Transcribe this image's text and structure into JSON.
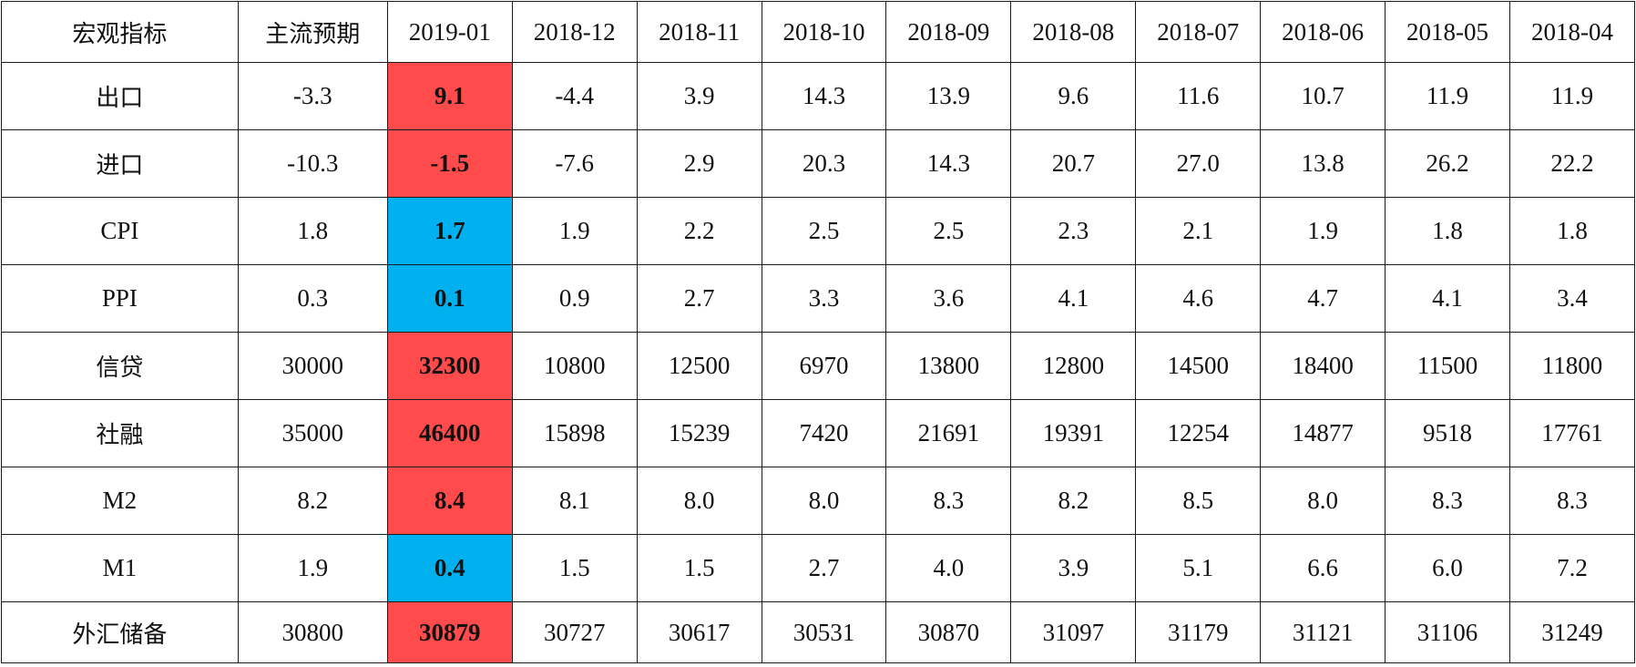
{
  "table": {
    "header": {
      "indicator": "宏观指标",
      "expectation": "主流预期",
      "current": "2019-01",
      "history": [
        "2018-12",
        "2018-11",
        "2018-10",
        "2018-09",
        "2018-08",
        "2018-07",
        "2018-06",
        "2018-05",
        "2018-04"
      ]
    },
    "rows": [
      {
        "name": "出口",
        "expectation": "-3.3",
        "current": "9.1",
        "current_flag": "up",
        "history": [
          "-4.4",
          "3.9",
          "14.3",
          "13.9",
          "9.6",
          "11.6",
          "10.7",
          "11.9",
          "11.9"
        ]
      },
      {
        "name": "进口",
        "expectation": "-10.3",
        "current": "-1.5",
        "current_flag": "up",
        "history": [
          "-7.6",
          "2.9",
          "20.3",
          "14.3",
          "20.7",
          "27.0",
          "13.8",
          "26.2",
          "22.2"
        ]
      },
      {
        "name": "CPI",
        "expectation": "1.8",
        "current": "1.7",
        "current_flag": "down",
        "history": [
          "1.9",
          "2.2",
          "2.5",
          "2.5",
          "2.3",
          "2.1",
          "1.9",
          "1.8",
          "1.8"
        ]
      },
      {
        "name": "PPI",
        "expectation": "0.3",
        "current": "0.1",
        "current_flag": "down",
        "history": [
          "0.9",
          "2.7",
          "3.3",
          "3.6",
          "4.1",
          "4.6",
          "4.7",
          "4.1",
          "3.4"
        ]
      },
      {
        "name": "信贷",
        "expectation": "30000",
        "current": "32300",
        "current_flag": "up",
        "history": [
          "10800",
          "12500",
          "6970",
          "13800",
          "12800",
          "14500",
          "18400",
          "11500",
          "11800"
        ]
      },
      {
        "name": "社融",
        "expectation": "35000",
        "current": "46400",
        "current_flag": "up",
        "history": [
          "15898",
          "15239",
          "7420",
          "21691",
          "19391",
          "12254",
          "14877",
          "9518",
          "17761"
        ]
      },
      {
        "name": "M2",
        "expectation": "8.2",
        "current": "8.4",
        "current_flag": "up",
        "history": [
          "8.1",
          "8.0",
          "8.0",
          "8.3",
          "8.2",
          "8.5",
          "8.0",
          "8.3",
          "8.3"
        ]
      },
      {
        "name": "M1",
        "expectation": "1.9",
        "current": "0.4",
        "current_flag": "down",
        "history": [
          "1.5",
          "1.5",
          "2.7",
          "4.0",
          "3.9",
          "5.1",
          "6.6",
          "6.0",
          "7.2"
        ]
      },
      {
        "name": "外汇储备",
        "expectation": "30800",
        "current": "30879",
        "current_flag": "up",
        "history": [
          "30727",
          "30617",
          "30531",
          "30870",
          "31097",
          "31179",
          "31121",
          "31106",
          "31249"
        ]
      }
    ],
    "colors": {
      "above_expectation": "#ff4b4b",
      "below_expectation": "#00b0ef",
      "border": "#1a1a1a"
    }
  }
}
